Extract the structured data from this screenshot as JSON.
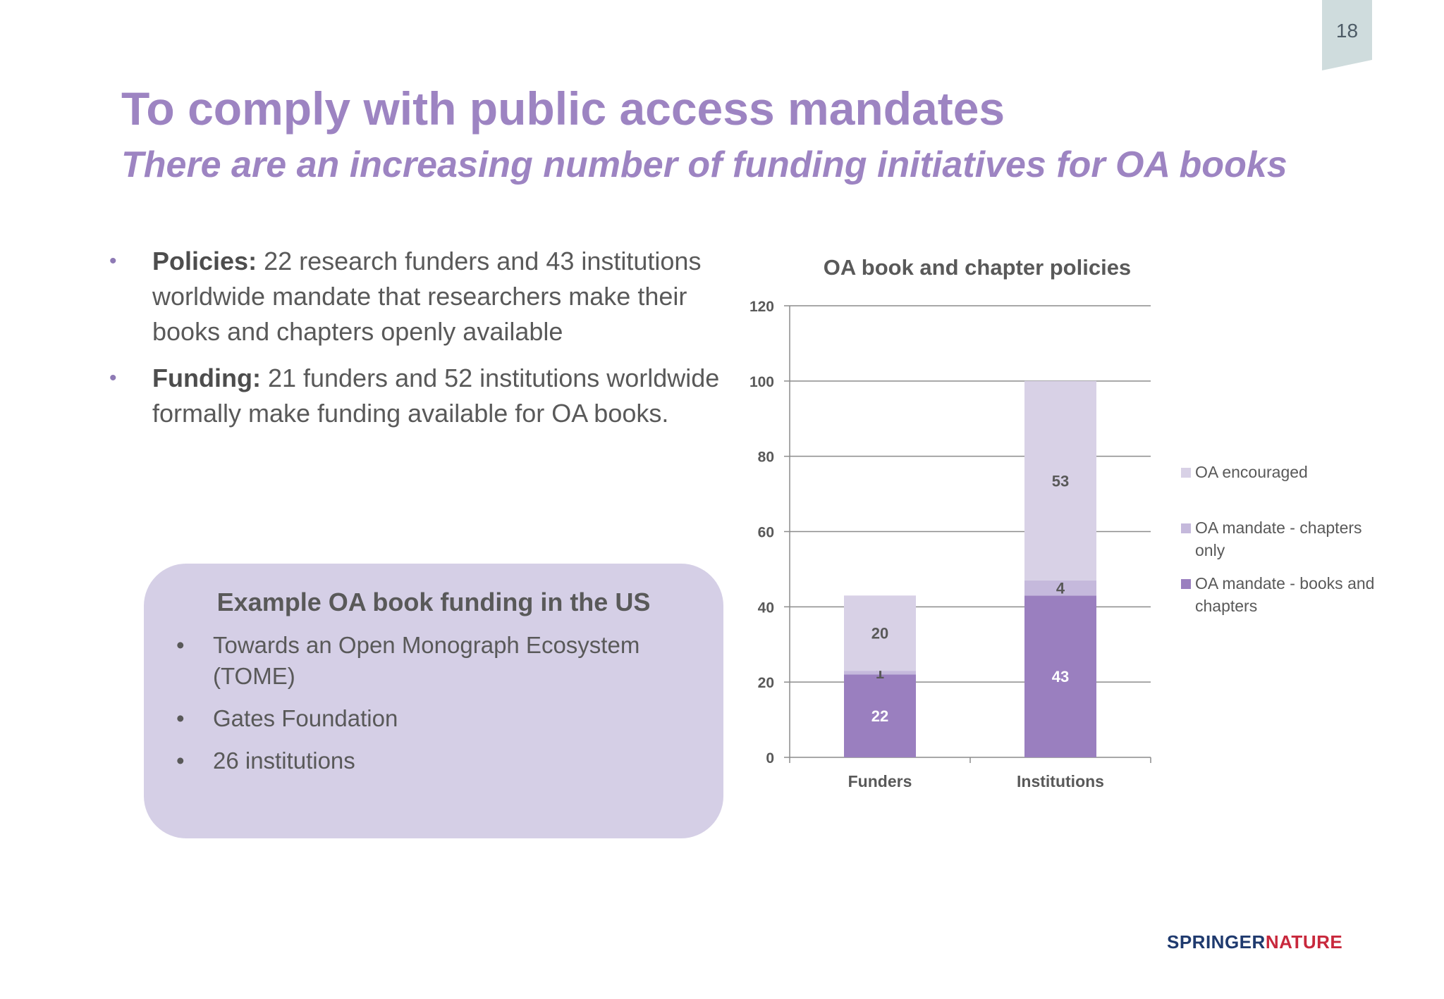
{
  "page_number": "18",
  "title": "To comply with public access mandates",
  "subtitle": "There are an increasing number of funding initiatives for OA books",
  "bullets": [
    {
      "label": "Policies:",
      "text": " 22 research funders and 43 institutions worldwide mandate that researchers make their books and chapters openly available"
    },
    {
      "label": "Funding:",
      "text": " 21 funders and 52 institutions worldwide formally make funding available for OA books."
    }
  ],
  "example": {
    "title": "Example OA book funding in the US",
    "items": [
      "Towards an Open Monograph Ecosystem (TOME)",
      "Gates Foundation",
      "26 institutions"
    ]
  },
  "logo": {
    "part1": "SPRINGER",
    "part2": "NATURE"
  },
  "chart_data": {
    "type": "bar",
    "stacked": true,
    "title": "OA book and chapter policies",
    "categories": [
      "Funders",
      "Institutions"
    ],
    "series": [
      {
        "name": "OA mandate - books and chapters",
        "values": [
          22,
          43
        ],
        "color": "#9a7fbf",
        "label_color": "#ffffff"
      },
      {
        "name": "OA mandate - chapters only",
        "values": [
          1,
          4
        ],
        "color": "#c5b9dc",
        "label_color": "#595959"
      },
      {
        "name": "OA encouraged",
        "values": [
          20,
          53
        ],
        "color": "#d8d1e6",
        "label_color": "#595959"
      }
    ],
    "ylim": [
      0,
      120
    ],
    "yticks": [
      0,
      20,
      40,
      60,
      80,
      100,
      120
    ],
    "grid": true,
    "legend_position": "right",
    "legend_order": [
      "OA encouraged",
      "OA mandate - chapters only",
      "OA mandate - books and chapters"
    ]
  }
}
